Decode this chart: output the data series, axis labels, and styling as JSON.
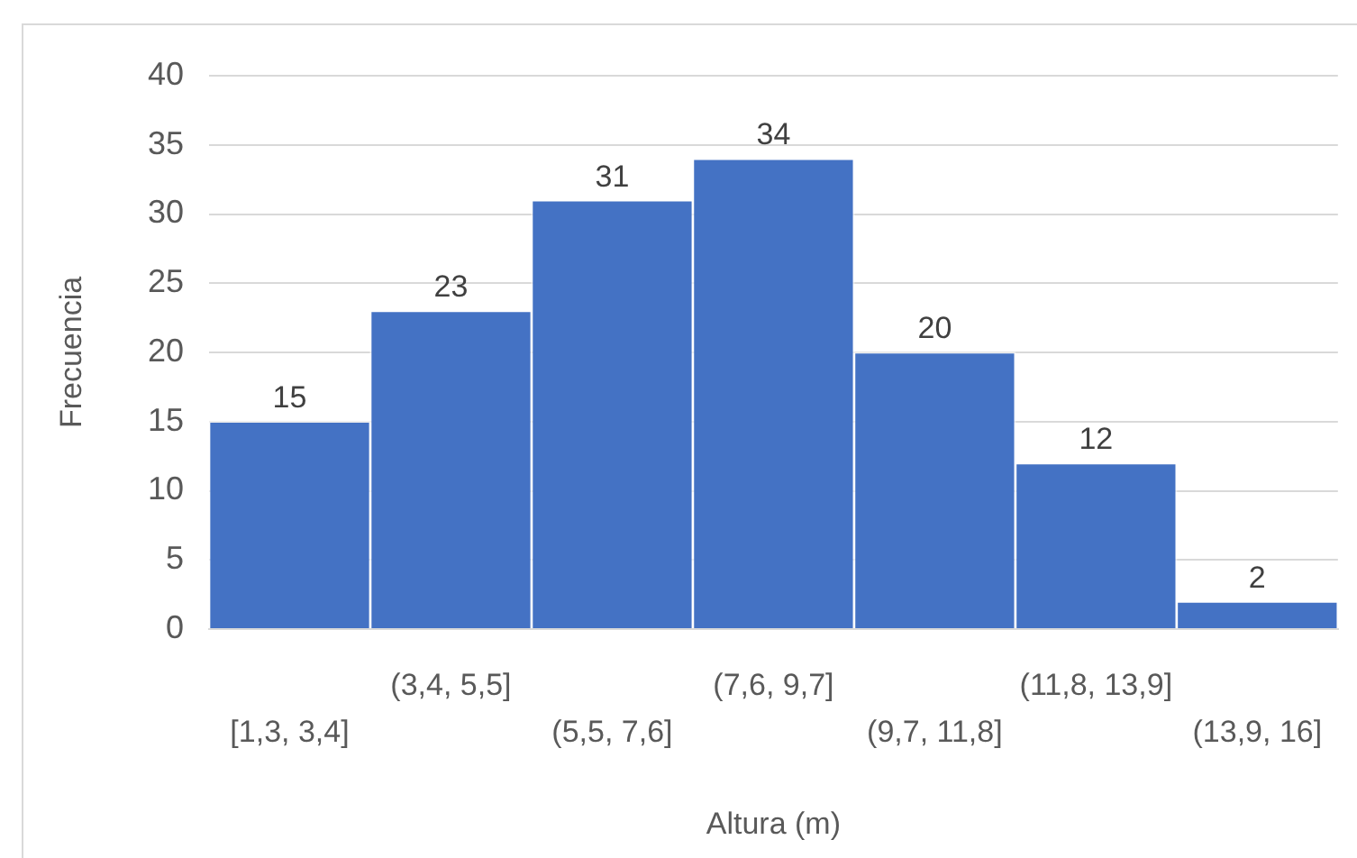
{
  "chart_data": {
    "type": "bar",
    "xlabel": "Altura (m)",
    "ylabel": "Frecuencia",
    "categories": [
      "[1,3, 3,4]",
      "(3,4, 5,5]",
      "(5,5, 7,6]",
      "(7,6, 9,7]",
      "(9,7, 11,8]",
      "(11,8, 13,9]",
      "(13,9, 16]"
    ],
    "values": [
      15,
      23,
      31,
      34,
      20,
      12,
      2
    ],
    "color": "#4472c4",
    "ylim": [
      0,
      40
    ],
    "yticks": [
      0,
      5,
      10,
      15,
      20,
      25,
      30,
      35,
      40
    ],
    "grid": "y",
    "data_labels": true
  }
}
